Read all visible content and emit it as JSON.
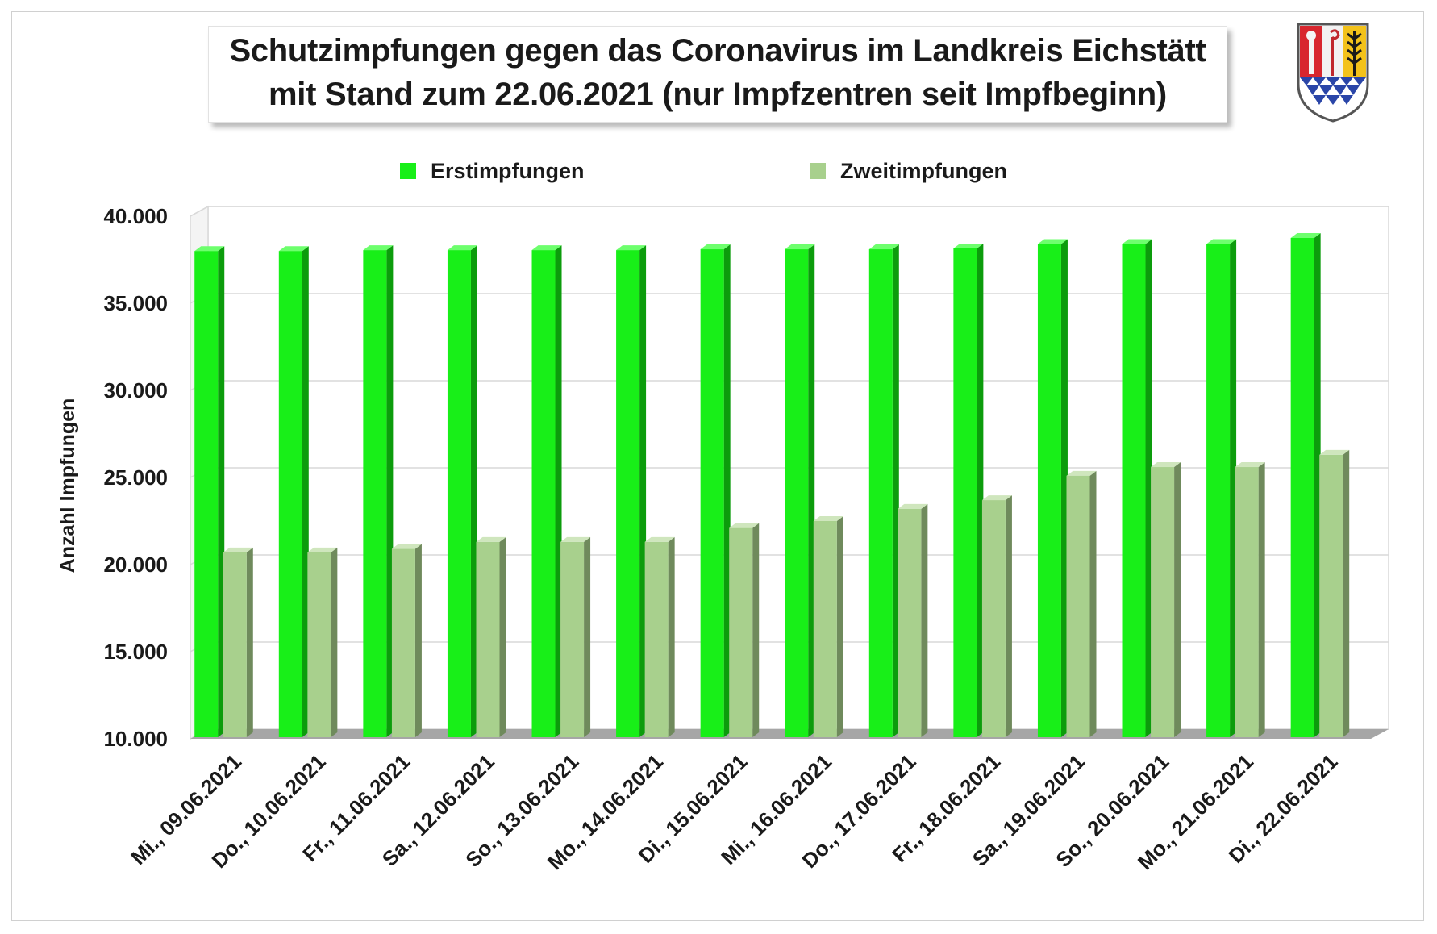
{
  "title": {
    "line1": "Schutzimpfungen gegen das Coronavirus im Landkreis Eichstätt",
    "line2": "mit Stand zum 22.06.2021 (nur Impfzentren seit Impfbeginn)"
  },
  "logo": {
    "name": "Landkreis Eichstätt coat of arms"
  },
  "colors": {
    "erst": "#18ef18",
    "zweit": "#a8d08d"
  },
  "chart_data": {
    "type": "bar",
    "title": "Schutzimpfungen gegen das Coronavirus im Landkreis Eichstätt mit Stand zum 22.06.2021 (nur Impfzentren seit Impfbeginn)",
    "xlabel": "",
    "ylabel": "Anzahl Impfungen",
    "ylim": [
      10000,
      40000
    ],
    "yticks": [
      10000,
      15000,
      20000,
      25000,
      30000,
      35000,
      40000
    ],
    "ytick_labels": [
      "10.000",
      "15.000",
      "20.000",
      "25.000",
      "30.000",
      "35.000",
      "40.000"
    ],
    "grid": true,
    "legend_position": "top",
    "categories": [
      "Mi., 09.06.2021",
      "Do., 10.06.2021",
      "Fr., 11.06.2021",
      "Sa., 12.06.2021",
      "So., 13.06.2021",
      "Mo., 14.06.2021",
      "Di., 15.06.2021",
      "Mi., 16.06.2021",
      "Do., 17.06.2021",
      "Fr., 18.06.2021",
      "Sa., 19.06.2021",
      "So., 20.06.2021",
      "Mo., 21.06.2021",
      "Di., 22.06.2021"
    ],
    "series": [
      {
        "name": "Erstimpfungen",
        "values": [
          38000,
          38000,
          38050,
          38050,
          38050,
          38050,
          38100,
          38100,
          38100,
          38150,
          38400,
          38400,
          38400,
          38750
        ]
      },
      {
        "name": "Zweitimpfungen",
        "values": [
          20700,
          20700,
          20900,
          21300,
          21300,
          21300,
          22100,
          22500,
          23200,
          23700,
          25100,
          25600,
          25600,
          26300
        ]
      }
    ]
  }
}
